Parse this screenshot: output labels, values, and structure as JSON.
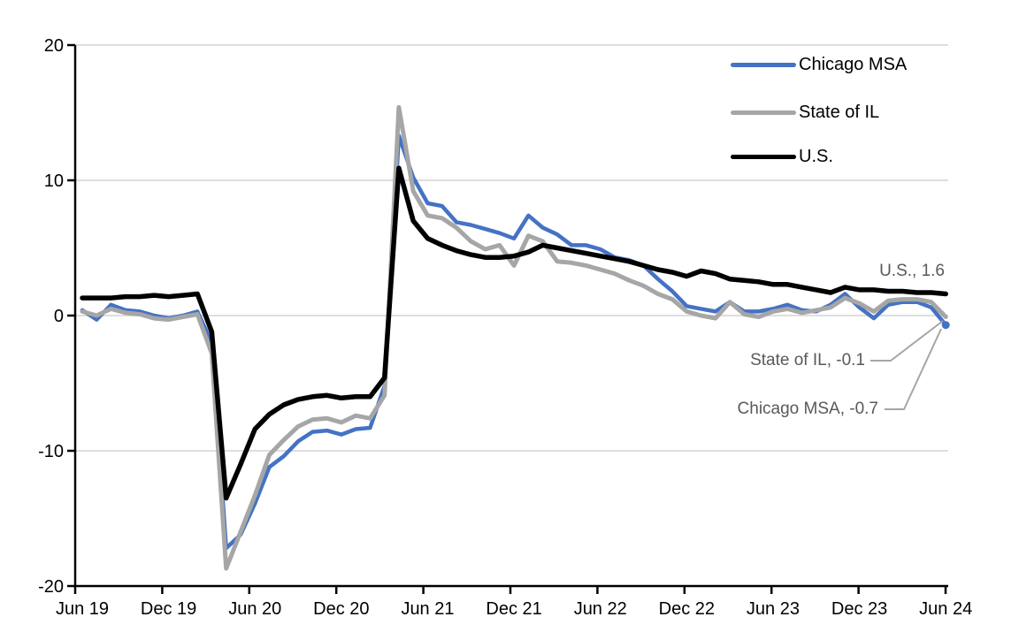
{
  "chart_data": {
    "type": "line",
    "title": "",
    "x_axis": {
      "tick_labels": [
        "Jun 19",
        "Dec 19",
        "Jun 20",
        "Dec 20",
        "Jun 21",
        "Dec 21",
        "Jun 22",
        "Dec 22",
        "Jun 23",
        "Dec 23",
        "Jun 24"
      ],
      "start": "Jun 19",
      "end": "Jun 24",
      "frequency": "monthly"
    },
    "y_axis": {
      "ticks": [
        20,
        10,
        0,
        -10,
        -20
      ],
      "range": [
        -20,
        20
      ]
    },
    "grid": "horizontal",
    "legend": {
      "position": "top-right-inside"
    },
    "series": [
      {
        "name": "Chicago MSA",
        "color": "#4472C4",
        "end_marker": true,
        "end_value": -0.7,
        "values": [
          0.4,
          -0.3,
          0.8,
          0.4,
          0.3,
          0.0,
          -0.2,
          0.0,
          0.3,
          -2.0,
          -17.2,
          -16.2,
          -13.9,
          -11.2,
          -10.4,
          -9.3,
          -8.6,
          -8.5,
          -8.8,
          -8.4,
          -8.3,
          -5.2,
          13.3,
          10.2,
          8.3,
          8.1,
          6.9,
          6.7,
          6.4,
          6.1,
          5.7,
          7.4,
          6.5,
          6.0,
          5.2,
          5.2,
          4.9,
          4.3,
          4.1,
          3.7,
          2.7,
          1.8,
          0.7,
          0.5,
          0.3,
          1.0,
          0.3,
          0.3,
          0.5,
          0.8,
          0.4,
          0.3,
          0.8,
          1.6,
          0.6,
          -0.2,
          0.8,
          1.0,
          1.0,
          0.6,
          -0.7
        ]
      },
      {
        "name": "State of IL",
        "color": "#A6A6A6",
        "end_marker": false,
        "end_value": -0.1,
        "values": [
          0.3,
          0.0,
          0.5,
          0.2,
          0.1,
          -0.2,
          -0.3,
          -0.1,
          0.1,
          -2.8,
          -18.7,
          -16.0,
          -13.3,
          -10.3,
          -9.2,
          -8.2,
          -7.7,
          -7.6,
          -7.9,
          -7.4,
          -7.6,
          -5.9,
          15.4,
          9.2,
          7.4,
          7.2,
          6.5,
          5.5,
          4.9,
          5.2,
          3.7,
          5.9,
          5.5,
          4.0,
          3.9,
          3.7,
          3.4,
          3.1,
          2.6,
          2.2,
          1.6,
          1.2,
          0.3,
          0.0,
          -0.2,
          1.0,
          0.1,
          -0.1,
          0.3,
          0.5,
          0.2,
          0.4,
          0.6,
          1.3,
          0.9,
          0.3,
          1.1,
          1.2,
          1.2,
          1.0,
          -0.1
        ]
      },
      {
        "name": "U.S.",
        "color": "#000000",
        "end_marker": false,
        "end_value": 1.6,
        "values": [
          1.3,
          1.3,
          1.3,
          1.4,
          1.4,
          1.5,
          1.4,
          1.5,
          1.6,
          -1.2,
          -13.5,
          -11.0,
          -8.4,
          -7.3,
          -6.6,
          -6.2,
          -6.0,
          -5.9,
          -6.1,
          -6.0,
          -6.0,
          -4.6,
          10.9,
          7.0,
          5.7,
          5.2,
          4.8,
          4.5,
          4.3,
          4.3,
          4.4,
          4.7,
          5.2,
          5.0,
          4.8,
          4.6,
          4.4,
          4.2,
          4.0,
          3.7,
          3.4,
          3.2,
          2.9,
          3.3,
          3.1,
          2.7,
          2.6,
          2.5,
          2.3,
          2.3,
          2.1,
          1.9,
          1.7,
          2.1,
          1.9,
          1.9,
          1.8,
          1.8,
          1.7,
          1.7,
          1.6
        ]
      }
    ],
    "annotations": [
      {
        "text": "U.S., 1.6",
        "series": "U.S.",
        "value": 1.6
      },
      {
        "text": "State of IL, -0.1",
        "series": "State of IL",
        "value": -0.1
      },
      {
        "text": "Chicago MSA, -0.7",
        "series": "Chicago MSA",
        "value": -0.7
      }
    ],
    "colors": {
      "chicago_msa": "#4472C4",
      "state_of_il": "#A6A6A6",
      "us": "#000000",
      "gridline": "#D9D9D9",
      "axis": "#000000",
      "annotation_text": "#595959",
      "leader_line": "#A6A6A6"
    }
  }
}
